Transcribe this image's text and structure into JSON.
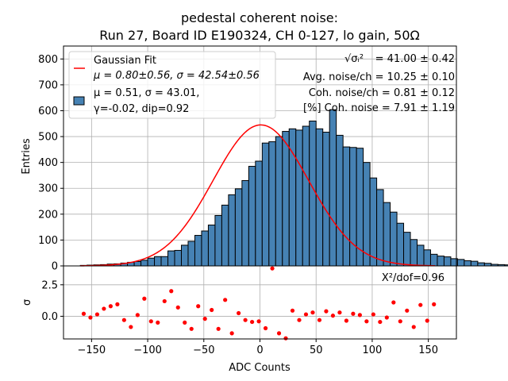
{
  "title_lines": [
    "pedestal coherent noise:",
    "Run 27, Board ID E190324, CH 0-127, lo gain, 50Ω"
  ],
  "colors": {
    "bar_fill": "#4682b4",
    "bar_edge": "#000000",
    "fit_line": "#ff0000",
    "residual_marker": "#ff0000",
    "grid": "#b0b0b0"
  },
  "legend": {
    "fit_label": "Gaussian Fit",
    "fit_params": "μ = 0.80±0.56, σ = 42.54±0.56",
    "hist_line1": "μ = 0.51, σ = 43.01,",
    "hist_line2": "γ=-0.02, dip=0.92"
  },
  "stats": {
    "sigma_sym": "√σᵢ²",
    "sigma_val": "= 41.00 ± 0.42",
    "avg_noise": "Avg. noise/ch = 10.25 ± 0.10",
    "coh_noise": "Coh. noise/ch = 0.81 ± 0.12",
    "coh_pct": "[%] Coh. noise = 7.91  ± 1.19"
  },
  "chi2_label": "X²/dof=0.96",
  "chart_data": [
    {
      "type": "bar",
      "name": "main-histogram",
      "xlabel": "",
      "ylabel": "Entries",
      "xlim": [
        -175,
        175
      ],
      "ylim": [
        0,
        850
      ],
      "yticks": [
        0,
        100,
        200,
        300,
        400,
        500,
        600,
        700,
        800
      ],
      "grid": true,
      "legend_position": "upper-left",
      "bin_width": 6,
      "bin_start": -160,
      "values": [
        2,
        3,
        4,
        5,
        7,
        8,
        11,
        14,
        17,
        22,
        30,
        36,
        36,
        58,
        60,
        80,
        95,
        118,
        135,
        158,
        195,
        235,
        275,
        298,
        330,
        385,
        405,
        475,
        480,
        500,
        520,
        530,
        525,
        540,
        560,
        530,
        517,
        604,
        505,
        460,
        458,
        455,
        400,
        340,
        295,
        245,
        208,
        165,
        130,
        102,
        80,
        62,
        45,
        38,
        35,
        28,
        25,
        20,
        18,
        12,
        10,
        6,
        5,
        4,
        3,
        2
      ],
      "fit": {
        "label": "Gaussian Fit",
        "mu": 0.8,
        "sigma": 42.54,
        "amplitude": 545
      }
    },
    {
      "type": "scatter",
      "name": "residuals",
      "xlabel": "ADC Counts",
      "ylabel": "σ",
      "xlim": [
        -175,
        175
      ],
      "ylim": [
        -1.8,
        4.0
      ],
      "xticks": [
        -150,
        -100,
        -50,
        0,
        50,
        100,
        150
      ],
      "yticks": [
        0.0,
        2.5
      ],
      "grid": true,
      "x": [
        -157,
        -151,
        -145,
        -139,
        -133,
        -127,
        -121,
        -115,
        -109,
        -103,
        -97,
        -91,
        -85,
        -79,
        -73,
        -67,
        -61,
        -55,
        -49,
        -43,
        -37,
        -31,
        -25,
        -19,
        -13,
        -7,
        -1,
        5,
        11,
        17,
        23,
        29,
        35,
        41,
        47,
        53,
        59,
        65,
        71,
        77,
        83,
        89,
        95,
        101,
        107,
        113,
        119,
        125,
        131,
        137,
        143,
        149,
        155
      ],
      "y": [
        0.2,
        -0.1,
        0.15,
        0.6,
        0.8,
        0.95,
        -0.3,
        -0.85,
        0.1,
        1.4,
        -0.4,
        -0.5,
        1.2,
        2.0,
        0.7,
        -0.5,
        -1.0,
        0.8,
        -0.2,
        0.5,
        -1.0,
        1.3,
        -1.35,
        0.25,
        -0.3,
        -0.45,
        -0.4,
        -0.95,
        3.8,
        -1.35,
        -1.75,
        0.45,
        -0.3,
        0.15,
        0.3,
        -0.3,
        0.4,
        0.05,
        0.3,
        -0.35,
        0.2,
        0.1,
        -0.4,
        0.15,
        -0.45,
        -0.1,
        1.1,
        -0.4,
        0.45,
        -0.85,
        0.9,
        -0.35,
        0.95
      ]
    }
  ]
}
